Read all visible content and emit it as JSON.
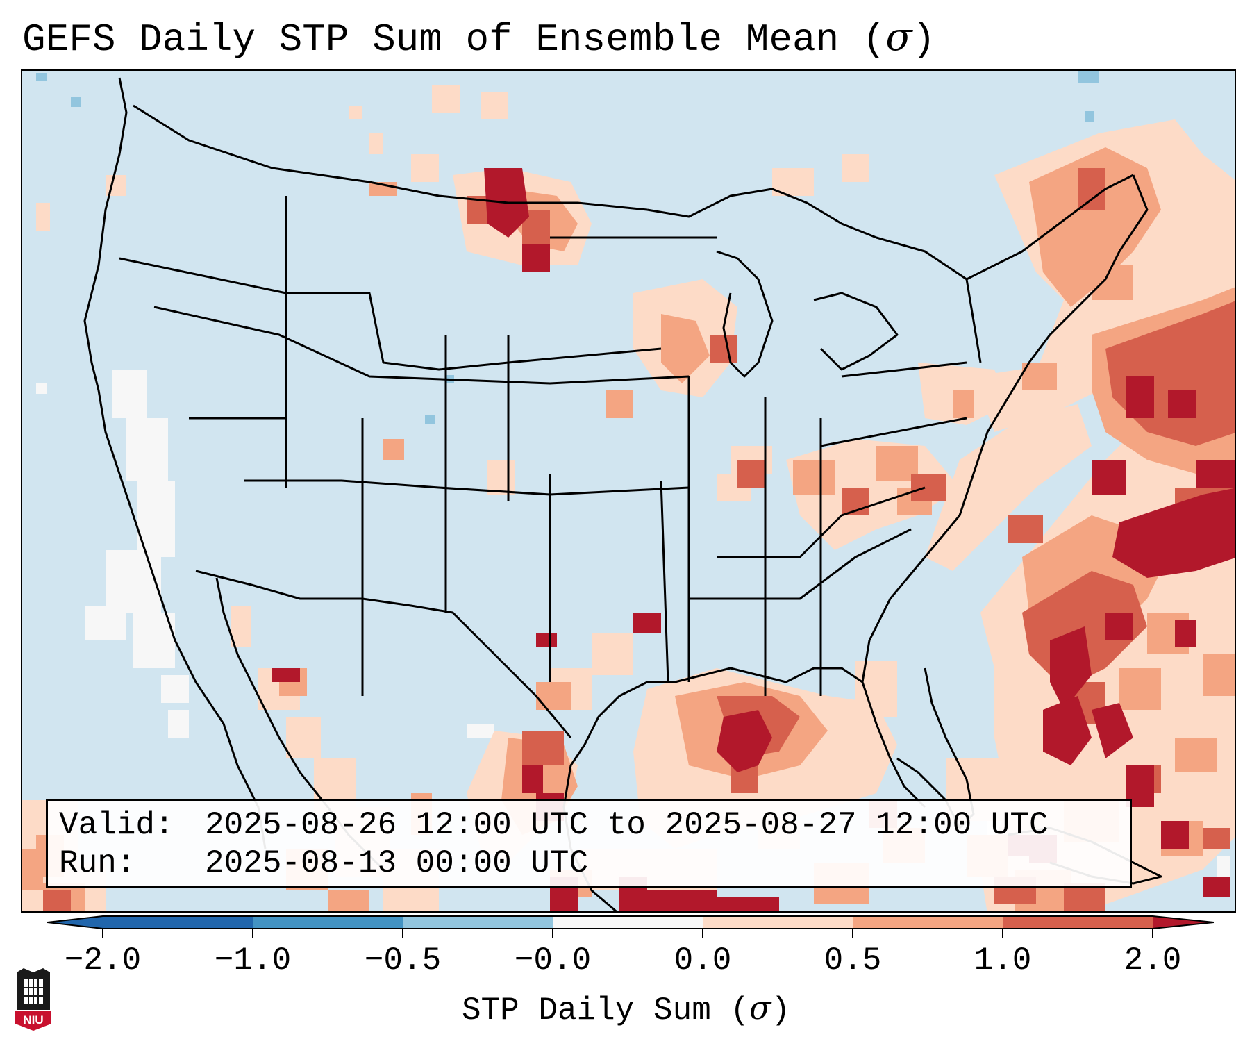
{
  "title": {
    "text": "GEFS Daily STP Sum of Ensemble Mean",
    "symbol": "σ"
  },
  "info": {
    "valid_label": "Valid:",
    "valid_value": "2025-08-26 12:00 UTC to 2025-08-27 12:00 UTC",
    "run_label": "Run:",
    "run_value": "2025-08-13 00:00 UTC"
  },
  "colorbar": {
    "ticks": [
      "−2.0",
      "−1.0",
      "−0.5",
      "−0.0",
      "0.0",
      "0.5",
      "1.0",
      "2.0"
    ],
    "label_text": "STP Daily Sum",
    "label_symbol": "σ",
    "colors": [
      "#2166ac",
      "#4393c3",
      "#92c5de",
      "#d1e5f0",
      "#fddbc7",
      "#f4a582",
      "#d6604d",
      "#b2182b"
    ]
  },
  "map": {
    "ocean_fill": "#d1e5f0",
    "border_color": "#000000"
  },
  "logo": {
    "text": "NIU"
  }
}
